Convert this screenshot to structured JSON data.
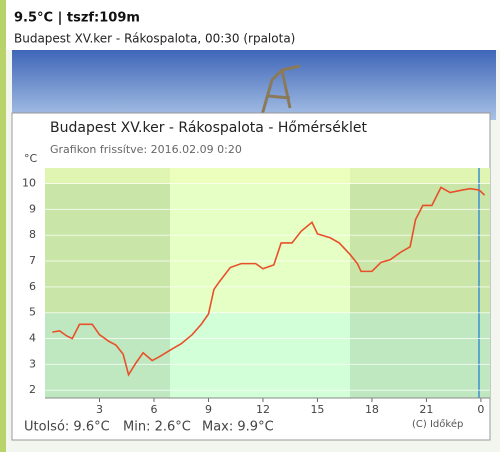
{
  "header": {
    "title": "9.5°C | tszf:109m",
    "subtitle": "Budapest XV.ker - Rákospalota, 00:30 (rpalota)"
  },
  "chart_data": {
    "type": "line",
    "title": "Budapest XV.ker - Rákospalota - Hőmérséklet",
    "subtitle": "Grafikon frissítve: 2016.02.09 0:20",
    "y_label": "°C",
    "x": [
      0.4,
      0.8,
      1.2,
      1.5,
      1.9,
      2.6,
      3.0,
      3.5,
      3.9,
      4.3,
      4.6,
      5.0,
      5.4,
      5.9,
      6.3,
      7.0,
      7.5,
      8.1,
      8.6,
      9.0,
      9.3,
      9.6,
      10.2,
      10.8,
      11.6,
      12.0,
      12.6,
      13.0,
      13.6,
      14.1,
      14.7,
      15.0,
      15.7,
      16.2,
      16.8,
      17.2,
      17.4,
      18.0,
      18.5,
      19.0,
      19.6,
      20.1,
      20.4,
      20.8,
      21.3,
      21.8,
      22.3,
      23.0,
      23.4,
      23.9,
      24.2
    ],
    "series": [
      {
        "color": "#e8502a",
        "values": [
          4.25,
          4.3,
          4.1,
          4.0,
          4.55,
          4.55,
          4.15,
          3.9,
          3.75,
          3.4,
          2.6,
          3.05,
          3.45,
          3.15,
          3.3,
          3.6,
          3.8,
          4.15,
          4.55,
          4.95,
          5.9,
          6.2,
          6.75,
          6.9,
          6.9,
          6.7,
          6.85,
          7.7,
          7.7,
          8.15,
          8.5,
          8.05,
          7.9,
          7.7,
          7.25,
          6.9,
          6.6,
          6.6,
          6.95,
          7.05,
          7.35,
          7.55,
          8.6,
          9.15,
          9.15,
          9.85,
          9.65,
          9.75,
          9.8,
          9.75,
          9.55
        ]
      }
    ],
    "xlim": [
      0,
      24.5
    ],
    "xticks": [
      3,
      6,
      9,
      12,
      15,
      18,
      21,
      {
        "value": 24,
        "label": "0"
      }
    ],
    "ylim": [
      1.7,
      10.6
    ],
    "yticks": [
      2,
      3,
      4,
      5,
      6,
      7,
      8,
      9,
      10
    ],
    "grid": true
  },
  "footer": {
    "last": "Utolsó: 9.6°C",
    "min": "Min: 2.6°C",
    "max": "Max: 9.9°C",
    "credit": "(C) Időkép"
  }
}
